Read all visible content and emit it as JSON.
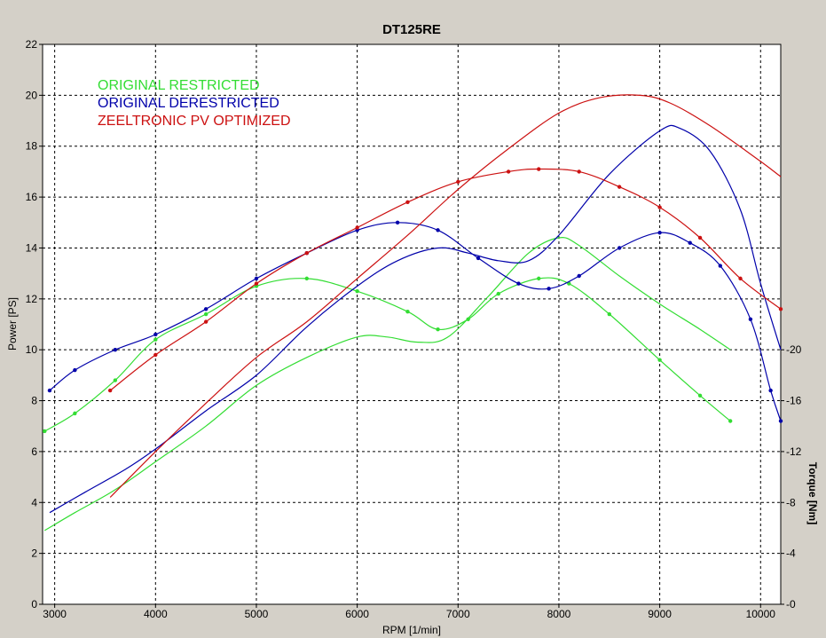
{
  "chart_data": {
    "type": "line",
    "title": "DT125RE",
    "xlabel": "RPM [1/min]",
    "ylabel": "Power [PS]",
    "y2label": "Torque [Nm]",
    "xlim": [
      2880,
      10200
    ],
    "ylim": [
      0,
      22
    ],
    "y2lim": [
      0,
      22
    ],
    "x_ticks": [
      3000,
      4000,
      5000,
      6000,
      7000,
      8000,
      9000,
      10000
    ],
    "y_ticks": [
      0,
      2,
      4,
      6,
      8,
      10,
      12,
      14,
      16,
      18,
      20,
      22
    ],
    "y2_ticks": [
      {
        "label": "0",
        "y": 0
      },
      {
        "label": "4",
        "y": 2
      },
      {
        "label": "8",
        "y": 4
      },
      {
        "label": "12",
        "y": 6
      },
      {
        "label": "16",
        "y": 8
      },
      {
        "label": "20",
        "y": 10
      }
    ],
    "grid": true,
    "legend_position": "top-left",
    "series": [
      {
        "name": "ORIGINAL RESTRICTED",
        "color": "#33dd33",
        "power": [
          [
            2900,
            2.9
          ],
          [
            3200,
            3.6
          ],
          [
            3600,
            4.5
          ],
          [
            4000,
            5.6
          ],
          [
            4500,
            7.0
          ],
          [
            5000,
            8.6
          ],
          [
            5500,
            9.7
          ],
          [
            6000,
            10.5
          ],
          [
            6300,
            10.5
          ],
          [
            6600,
            10.3
          ],
          [
            6900,
            10.5
          ],
          [
            7300,
            12.1
          ],
          [
            7700,
            13.8
          ],
          [
            8000,
            14.4
          ],
          [
            8200,
            14.1
          ],
          [
            8600,
            12.9
          ],
          [
            9000,
            11.8
          ],
          [
            9400,
            10.8
          ],
          [
            9700,
            10.0
          ]
        ],
        "torque": [
          [
            2900,
            6.8
          ],
          [
            3200,
            7.5
          ],
          [
            3600,
            8.8
          ],
          [
            4000,
            10.4
          ],
          [
            4500,
            11.4
          ],
          [
            5000,
            12.5
          ],
          [
            5500,
            12.8
          ],
          [
            6000,
            12.3
          ],
          [
            6500,
            11.5
          ],
          [
            6800,
            10.8
          ],
          [
            7100,
            11.2
          ],
          [
            7400,
            12.2
          ],
          [
            7800,
            12.8
          ],
          [
            8100,
            12.6
          ],
          [
            8500,
            11.4
          ],
          [
            9000,
            9.6
          ],
          [
            9400,
            8.2
          ],
          [
            9700,
            7.2
          ]
        ]
      },
      {
        "name": "ORIGINAL DERESTRICTED",
        "color": "#0000aa",
        "power": [
          [
            2950,
            3.6
          ],
          [
            3300,
            4.4
          ],
          [
            3700,
            5.3
          ],
          [
            4000,
            6.1
          ],
          [
            4500,
            7.6
          ],
          [
            5000,
            9.0
          ],
          [
            5500,
            10.9
          ],
          [
            6000,
            12.5
          ],
          [
            6400,
            13.5
          ],
          [
            6800,
            14.0
          ],
          [
            7100,
            13.8
          ],
          [
            7400,
            13.5
          ],
          [
            7700,
            13.5
          ],
          [
            8000,
            14.5
          ],
          [
            8500,
            16.9
          ],
          [
            9000,
            18.6
          ],
          [
            9200,
            18.7
          ],
          [
            9500,
            17.8
          ],
          [
            9800,
            15.5
          ],
          [
            10000,
            12.6
          ],
          [
            10200,
            10.0
          ]
        ],
        "torque": [
          [
            2950,
            8.4
          ],
          [
            3200,
            9.2
          ],
          [
            3600,
            10.0
          ],
          [
            4000,
            10.6
          ],
          [
            4500,
            11.6
          ],
          [
            5000,
            12.8
          ],
          [
            5500,
            13.8
          ],
          [
            6000,
            14.7
          ],
          [
            6400,
            15.0
          ],
          [
            6800,
            14.7
          ],
          [
            7200,
            13.6
          ],
          [
            7600,
            12.6
          ],
          [
            7900,
            12.4
          ],
          [
            8200,
            12.9
          ],
          [
            8600,
            14.0
          ],
          [
            9000,
            14.6
          ],
          [
            9300,
            14.2
          ],
          [
            9600,
            13.3
          ],
          [
            9900,
            11.2
          ],
          [
            10100,
            8.4
          ],
          [
            10200,
            7.2
          ]
        ]
      },
      {
        "name": "ZEELTRONIC PV OPTIMIZED",
        "color": "#cc1111",
        "power": [
          [
            3550,
            4.2
          ],
          [
            4000,
            6.0
          ],
          [
            4500,
            7.9
          ],
          [
            5000,
            9.7
          ],
          [
            5500,
            11.1
          ],
          [
            6000,
            12.8
          ],
          [
            6500,
            14.5
          ],
          [
            7000,
            16.3
          ],
          [
            7500,
            17.9
          ],
          [
            8000,
            19.3
          ],
          [
            8400,
            19.9
          ],
          [
            8800,
            20.0
          ],
          [
            9100,
            19.7
          ],
          [
            9500,
            18.8
          ],
          [
            10000,
            17.4
          ],
          [
            10200,
            16.8
          ]
        ],
        "torque": [
          [
            3550,
            8.4
          ],
          [
            4000,
            9.8
          ],
          [
            4500,
            11.1
          ],
          [
            5000,
            12.6
          ],
          [
            5500,
            13.8
          ],
          [
            6000,
            14.8
          ],
          [
            6500,
            15.8
          ],
          [
            7000,
            16.6
          ],
          [
            7500,
            17.0
          ],
          [
            7800,
            17.1
          ],
          [
            8200,
            17.0
          ],
          [
            8600,
            16.4
          ],
          [
            9000,
            15.6
          ],
          [
            9400,
            14.4
          ],
          [
            9800,
            12.8
          ],
          [
            10200,
            11.6
          ]
        ]
      }
    ]
  }
}
